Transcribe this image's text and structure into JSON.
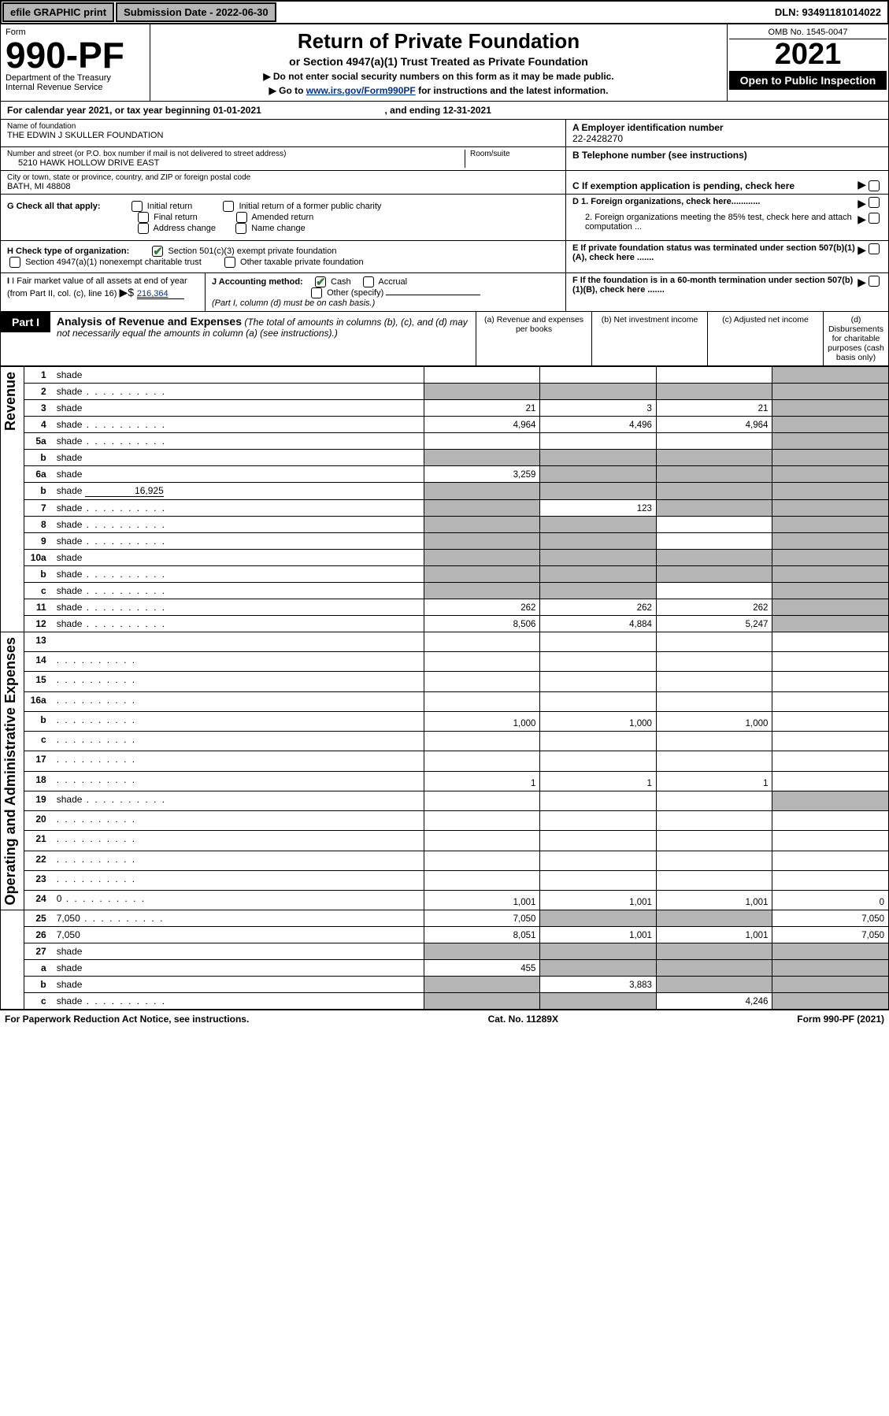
{
  "topbar": {
    "efile": "efile GRAPHIC print",
    "submission_label": "Submission Date - 2022-06-30",
    "dln": "DLN: 93491181014022"
  },
  "header": {
    "form_word": "Form",
    "form_number": "990-PF",
    "dept": "Department of the Treasury",
    "irs": "Internal Revenue Service",
    "title": "Return of Private Foundation",
    "subtitle1": "or Section 4947(a)(1) Trust Treated as Private Foundation",
    "subtitle2": "▶ Do not enter social security numbers on this form as it may be made public.",
    "subtitle3_prefix": "▶ Go to ",
    "subtitle3_link": "www.irs.gov/Form990PF",
    "subtitle3_suffix": " for instructions and the latest information.",
    "omb": "OMB No. 1545-0047",
    "year": "2021",
    "open": "Open to Public Inspection"
  },
  "calendar": {
    "text_a": "For calendar year 2021, or tax year beginning 01-01-2021",
    "text_b": ", and ending 12-31-2021"
  },
  "identity": {
    "name_label": "Name of foundation",
    "name": "THE EDWIN J SKULLER FOUNDATION",
    "addr_label": "Number and street (or P.O. box number if mail is not delivered to street address)",
    "addr": "5210 HAWK HOLLOW DRIVE EAST",
    "room_label": "Room/suite",
    "city_label": "City or town, state or province, country, and ZIP or foreign postal code",
    "city": "BATH, MI  48808",
    "ein_label": "A Employer identification number",
    "ein": "22-2428270",
    "tel_label": "B Telephone number (see instructions)",
    "c_label": "C If exemption application is pending, check here",
    "d1": "D 1. Foreign organizations, check here............",
    "d2": "2. Foreign organizations meeting the 85% test, check here and attach computation ...",
    "e": "E  If private foundation status was terminated under section 507(b)(1)(A), check here .......",
    "f": "F  If the foundation is in a 60-month termination under section 507(b)(1)(B), check here .......",
    "g_label": "G Check all that apply:",
    "g_opts": [
      "Initial return",
      "Initial return of a former public charity",
      "Final return",
      "Amended return",
      "Address change",
      "Name change"
    ],
    "h_label": "H Check type of organization:",
    "h_opt1": "Section 501(c)(3) exempt private foundation",
    "h_opt2": "Section 4947(a)(1) nonexempt charitable trust",
    "h_opt3": "Other taxable private foundation",
    "i_label": "I Fair market value of all assets at end of year (from Part II, col. (c), line 16)",
    "i_value": "216,364",
    "j_label": "J Accounting method:",
    "j_opts": [
      "Cash",
      "Accrual",
      "Other (specify)"
    ],
    "j_note": "(Part I, column (d) must be on cash basis.)"
  },
  "part1": {
    "badge": "Part I",
    "title": "Analysis of Revenue and Expenses",
    "note": "(The total of amounts in columns (b), (c), and (d) may not necessarily equal the amounts in column (a) (see instructions).)",
    "cols": {
      "a": "(a)   Revenue and expenses per books",
      "b": "(b)   Net investment income",
      "c": "(c)   Adjusted net income",
      "d": "(d)  Disbursements for charitable purposes (cash basis only)"
    }
  },
  "sections": {
    "revenue": "Revenue",
    "expenses": "Operating and Administrative Expenses"
  },
  "lines": [
    {
      "n": "1",
      "d": "shade",
      "a": "",
      "b": "",
      "c": ""
    },
    {
      "n": "2",
      "d": "shade",
      "dots": true,
      "a": "shade",
      "b": "shade",
      "c": "shade"
    },
    {
      "n": "3",
      "d": "shade",
      "a": "21",
      "b": "3",
      "c": "21"
    },
    {
      "n": "4",
      "d": "shade",
      "dots": true,
      "a": "4,964",
      "b": "4,496",
      "c": "4,964"
    },
    {
      "n": "5a",
      "d": "shade",
      "dots": true,
      "a": "",
      "b": "",
      "c": ""
    },
    {
      "n": "b",
      "d": "shade",
      "inset": true,
      "a": "shade",
      "b": "shade",
      "c": "shade"
    },
    {
      "n": "6a",
      "d": "shade",
      "a": "3,259",
      "b": "shade",
      "c": "shade"
    },
    {
      "n": "b",
      "d": "shade",
      "inset": true,
      "val_inline": "16,925",
      "a": "shade",
      "b": "shade",
      "c": "shade"
    },
    {
      "n": "7",
      "d": "shade",
      "dots": true,
      "a": "shade",
      "b": "123",
      "c": "shade"
    },
    {
      "n": "8",
      "d": "shade",
      "dots": true,
      "a": "shade",
      "b": "shade",
      "c": ""
    },
    {
      "n": "9",
      "d": "shade",
      "dots": true,
      "a": "shade",
      "b": "shade",
      "c": ""
    },
    {
      "n": "10a",
      "d": "shade",
      "inset": true,
      "a": "shade",
      "b": "shade",
      "c": "shade"
    },
    {
      "n": "b",
      "d": "shade",
      "dots": true,
      "inset": true,
      "a": "shade",
      "b": "shade",
      "c": "shade"
    },
    {
      "n": "c",
      "d": "shade",
      "dots": true,
      "a": "shade",
      "b": "shade",
      "c": ""
    },
    {
      "n": "11",
      "d": "shade",
      "dots": true,
      "a": "262",
      "b": "262",
      "c": "262"
    },
    {
      "n": "12",
      "d": "shade",
      "dots": true,
      "a": "8,506",
      "b": "4,884",
      "c": "5,247"
    },
    {
      "n": "13",
      "d": "",
      "a": "",
      "b": "",
      "c": ""
    },
    {
      "n": "14",
      "d": "",
      "dots": true,
      "a": "",
      "b": "",
      "c": ""
    },
    {
      "n": "15",
      "d": "",
      "dots": true,
      "a": "",
      "b": "",
      "c": ""
    },
    {
      "n": "16a",
      "d": "",
      "dots": true,
      "a": "",
      "b": "",
      "c": ""
    },
    {
      "n": "b",
      "d": "",
      "dots": true,
      "a": "1,000",
      "b": "1,000",
      "c": "1,000"
    },
    {
      "n": "c",
      "d": "",
      "dots": true,
      "a": "",
      "b": "",
      "c": ""
    },
    {
      "n": "17",
      "d": "",
      "dots": true,
      "a": "",
      "b": "",
      "c": ""
    },
    {
      "n": "18",
      "d": "",
      "dots": true,
      "a": "1",
      "b": "1",
      "c": "1"
    },
    {
      "n": "19",
      "d": "shade",
      "dots": true,
      "a": "",
      "b": "",
      "c": ""
    },
    {
      "n": "20",
      "d": "",
      "dots": true,
      "a": "",
      "b": "",
      "c": ""
    },
    {
      "n": "21",
      "d": "",
      "dots": true,
      "a": "",
      "b": "",
      "c": ""
    },
    {
      "n": "22",
      "d": "",
      "dots": true,
      "a": "",
      "b": "",
      "c": ""
    },
    {
      "n": "23",
      "d": "",
      "dots": true,
      "a": "",
      "b": "",
      "c": ""
    },
    {
      "n": "24",
      "d": "0",
      "dots": true,
      "a": "1,001",
      "b": "1,001",
      "c": "1,001"
    },
    {
      "n": "25",
      "d": "7,050",
      "dots": true,
      "a": "7,050",
      "b": "shade",
      "c": "shade"
    },
    {
      "n": "26",
      "d": "7,050",
      "a": "8,051",
      "b": "1,001",
      "c": "1,001"
    },
    {
      "n": "27",
      "d": "shade",
      "a": "shade",
      "b": "shade",
      "c": "shade"
    },
    {
      "n": "a",
      "d": "shade",
      "a": "455",
      "b": "shade",
      "c": "shade"
    },
    {
      "n": "b",
      "d": "shade",
      "a": "shade",
      "b": "3,883",
      "c": "shade"
    },
    {
      "n": "c",
      "d": "shade",
      "dots": true,
      "a": "shade",
      "b": "shade",
      "c": "4,246"
    }
  ],
  "footer": {
    "left": "For Paperwork Reduction Act Notice, see instructions.",
    "mid": "Cat. No. 11289X",
    "right": "Form 990-PF (2021)"
  },
  "style": {
    "shade_color": "#b5b5b5",
    "link_color": "#003399",
    "check_color": "#2e7d32",
    "col_widths": {
      "vlabel": 30,
      "lineno": 42,
      "desc": 470,
      "val": 147
    }
  }
}
